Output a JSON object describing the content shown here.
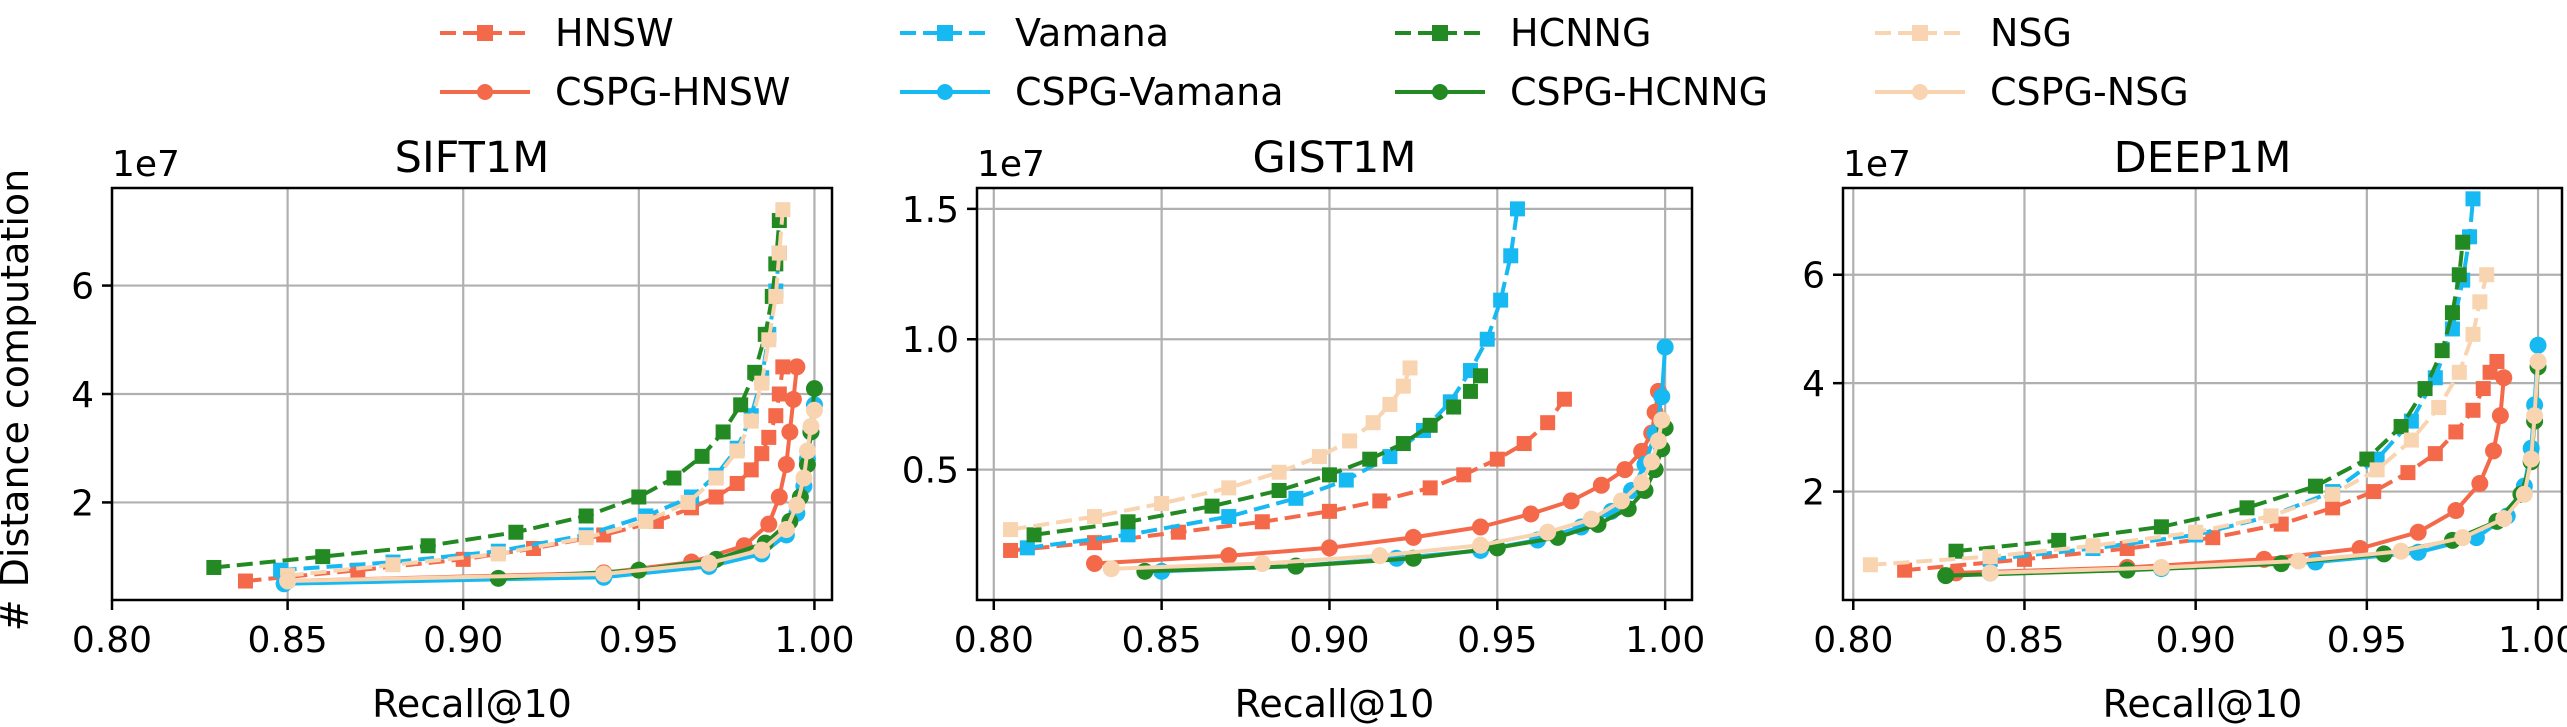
{
  "colors": {
    "HNSW": "#f4694a",
    "Vamana": "#17b9f2",
    "HCNNG": "#238a23",
    "NSG": "#f8d4b0"
  },
  "legend": {
    "position": "top-center",
    "entries": [
      {
        "label": "HNSW",
        "series": "HNSW",
        "style": "dashed",
        "marker": "square"
      },
      {
        "label": "Vamana",
        "series": "Vamana",
        "style": "dashed",
        "marker": "square"
      },
      {
        "label": "HCNNG",
        "series": "HCNNG",
        "style": "dashed",
        "marker": "square"
      },
      {
        "label": "NSG",
        "series": "NSG",
        "style": "dashed",
        "marker": "square"
      },
      {
        "label": "CSPG-HNSW",
        "series": "HNSW",
        "style": "solid",
        "marker": "circle"
      },
      {
        "label": "CSPG-Vamana",
        "series": "Vamana",
        "style": "solid",
        "marker": "circle"
      },
      {
        "label": "CSPG-HCNNG",
        "series": "HCNNG",
        "style": "solid",
        "marker": "circle"
      },
      {
        "label": "CSPG-NSG",
        "series": "NSG",
        "style": "solid",
        "marker": "circle"
      }
    ]
  },
  "ylabel_shared": "# Distance computation",
  "chart_data": [
    {
      "type": "line",
      "title": "SIFT1M",
      "xlabel": "Recall@10",
      "ylabel": "# Distance computation",
      "offset_label": "1e7",
      "xlim": [
        0.8,
        1.005
      ],
      "ylim": [
        0.2,
        7.8
      ],
      "xticks": [
        0.8,
        0.85,
        0.9,
        0.95,
        1.0
      ],
      "xtick_labels": [
        "0.80",
        "0.85",
        "0.90",
        "0.95",
        "1.00"
      ],
      "yticks": [
        2,
        4,
        6
      ],
      "ytick_labels": [
        "2",
        "4",
        "6"
      ],
      "grid": true,
      "series": [
        {
          "name": "HNSW",
          "x": [
            0.838,
            0.87,
            0.9,
            0.92,
            0.94,
            0.955,
            0.965,
            0.972,
            0.978,
            0.982,
            0.985,
            0.987,
            0.989,
            0.99,
            0.991
          ],
          "y": [
            0.55,
            0.75,
            0.95,
            1.15,
            1.4,
            1.65,
            1.9,
            2.1,
            2.35,
            2.6,
            2.9,
            3.2,
            3.6,
            4.0,
            4.5
          ]
        },
        {
          "name": "Vamana",
          "x": [
            0.848,
            0.88,
            0.91,
            0.935,
            0.952,
            0.965,
            0.972,
            0.978,
            0.982,
            0.985,
            0.987,
            0.989,
            0.99
          ],
          "y": [
            0.75,
            0.9,
            1.1,
            1.4,
            1.75,
            2.1,
            2.5,
            3.0,
            3.6,
            4.3,
            5.1,
            5.9,
            6.6
          ]
        },
        {
          "name": "HCNNG",
          "x": [
            0.829,
            0.86,
            0.89,
            0.915,
            0.935,
            0.95,
            0.96,
            0.968,
            0.974,
            0.979,
            0.983,
            0.986,
            0.988,
            0.989,
            0.99
          ],
          "y": [
            0.8,
            1.0,
            1.2,
            1.45,
            1.75,
            2.1,
            2.45,
            2.85,
            3.3,
            3.8,
            4.4,
            5.1,
            5.8,
            6.4,
            7.2
          ]
        },
        {
          "name": "NSG",
          "x": [
            0.85,
            0.88,
            0.91,
            0.935,
            0.952,
            0.964,
            0.972,
            0.978,
            0.982,
            0.985,
            0.987,
            0.989,
            0.99,
            0.991
          ],
          "y": [
            0.65,
            0.85,
            1.05,
            1.35,
            1.65,
            2.0,
            2.45,
            2.95,
            3.5,
            4.2,
            5.0,
            5.8,
            6.6,
            7.4
          ]
        },
        {
          "name": "CSPG-HNSW",
          "x": [
            0.85,
            0.94,
            0.965,
            0.98,
            0.987,
            0.99,
            0.992,
            0.993,
            0.994,
            0.995
          ],
          "y": [
            0.55,
            0.7,
            0.9,
            1.2,
            1.6,
            2.1,
            2.7,
            3.3,
            3.9,
            4.5
          ]
        },
        {
          "name": "CSPG-Vamana",
          "x": [
            0.849,
            0.94,
            0.97,
            0.985,
            0.992,
            0.995,
            0.997,
            0.998,
            0.999,
            1.0
          ],
          "y": [
            0.5,
            0.62,
            0.82,
            1.05,
            1.4,
            1.8,
            2.3,
            2.8,
            3.3,
            3.8
          ]
        },
        {
          "name": "CSPG-HCNNG",
          "x": [
            0.91,
            0.95,
            0.972,
            0.986,
            0.993,
            0.996,
            0.998,
            0.999,
            1.0
          ],
          "y": [
            0.6,
            0.75,
            0.95,
            1.25,
            1.65,
            2.1,
            2.7,
            3.3,
            4.1
          ]
        },
        {
          "name": "CSPG-NSG",
          "x": [
            0.85,
            0.94,
            0.97,
            0.985,
            0.992,
            0.995,
            0.997,
            0.998,
            0.999,
            1.0
          ],
          "y": [
            0.55,
            0.68,
            0.88,
            1.12,
            1.5,
            1.95,
            2.45,
            2.95,
            3.4,
            3.7
          ]
        }
      ]
    },
    {
      "type": "line",
      "title": "GIST1M",
      "xlabel": "Recall@10",
      "ylabel": "",
      "offset_label": "1e7",
      "xlim": [
        0.795,
        1.008
      ],
      "ylim": [
        0.0,
        1.58
      ],
      "xticks": [
        0.8,
        0.85,
        0.9,
        0.95,
        1.0
      ],
      "xtick_labels": [
        "0.80",
        "0.85",
        "0.90",
        "0.95",
        "1.00"
      ],
      "yticks": [
        0.5,
        1.0,
        1.5
      ],
      "ytick_labels": [
        "0.5",
        "1.0",
        "1.5"
      ],
      "grid": true,
      "series": [
        {
          "name": "HNSW",
          "x": [
            0.805,
            0.83,
            0.855,
            0.88,
            0.9,
            0.915,
            0.93,
            0.94,
            0.95,
            0.958,
            0.965,
            0.97
          ],
          "y": [
            0.19,
            0.22,
            0.26,
            0.3,
            0.34,
            0.38,
            0.43,
            0.48,
            0.54,
            0.6,
            0.68,
            0.77
          ]
        },
        {
          "name": "Vamana",
          "x": [
            0.81,
            0.84,
            0.87,
            0.89,
            0.905,
            0.918,
            0.928,
            0.936,
            0.942,
            0.947,
            0.951,
            0.954,
            0.956
          ],
          "y": [
            0.2,
            0.25,
            0.32,
            0.39,
            0.46,
            0.55,
            0.65,
            0.76,
            0.88,
            1.0,
            1.15,
            1.32,
            1.5
          ]
        },
        {
          "name": "HCNNG",
          "x": [
            0.812,
            0.84,
            0.865,
            0.885,
            0.9,
            0.912,
            0.922,
            0.93,
            0.937,
            0.942,
            0.945
          ],
          "y": [
            0.25,
            0.3,
            0.36,
            0.42,
            0.48,
            0.54,
            0.6,
            0.67,
            0.74,
            0.8,
            0.86
          ]
        },
        {
          "name": "NSG",
          "x": [
            0.805,
            0.83,
            0.85,
            0.87,
            0.885,
            0.897,
            0.906,
            0.913,
            0.918,
            0.922,
            0.924
          ],
          "y": [
            0.27,
            0.32,
            0.37,
            0.43,
            0.49,
            0.55,
            0.61,
            0.68,
            0.75,
            0.82,
            0.89
          ]
        },
        {
          "name": "CSPG-HNSW",
          "x": [
            0.83,
            0.87,
            0.9,
            0.925,
            0.945,
            0.96,
            0.972,
            0.981,
            0.988,
            0.993,
            0.996,
            0.997,
            0.998
          ],
          "y": [
            0.14,
            0.17,
            0.2,
            0.24,
            0.28,
            0.33,
            0.38,
            0.44,
            0.5,
            0.57,
            0.64,
            0.72,
            0.8
          ]
        },
        {
          "name": "CSPG-Vamana",
          "x": [
            0.85,
            0.89,
            0.92,
            0.945,
            0.962,
            0.975,
            0.984,
            0.99,
            0.994,
            0.997,
            0.999,
            1.0
          ],
          "y": [
            0.11,
            0.13,
            0.16,
            0.19,
            0.23,
            0.28,
            0.34,
            0.42,
            0.52,
            0.64,
            0.78,
            0.97
          ]
        },
        {
          "name": "CSPG-HCNNG",
          "x": [
            0.845,
            0.89,
            0.925,
            0.95,
            0.968,
            0.98,
            0.989,
            0.994,
            0.997,
            0.999,
            1.0
          ],
          "y": [
            0.11,
            0.13,
            0.16,
            0.2,
            0.24,
            0.29,
            0.35,
            0.42,
            0.5,
            0.58,
            0.66
          ]
        },
        {
          "name": "CSPG-NSG",
          "x": [
            0.835,
            0.88,
            0.915,
            0.945,
            0.965,
            0.978,
            0.987,
            0.993,
            0.996,
            0.998,
            0.999
          ],
          "y": [
            0.12,
            0.14,
            0.17,
            0.21,
            0.26,
            0.31,
            0.38,
            0.45,
            0.53,
            0.61,
            0.69
          ]
        }
      ]
    },
    {
      "type": "line",
      "title": "DEEP1M",
      "xlabel": "Recall@10",
      "ylabel": "",
      "offset_label": "1e7",
      "xlim": [
        0.797,
        1.007
      ],
      "ylim": [
        0.0,
        7.6
      ],
      "xticks": [
        0.8,
        0.85,
        0.9,
        0.95,
        1.0
      ],
      "xtick_labels": [
        "0.80",
        "0.85",
        "0.90",
        "0.95",
        "1.00"
      ],
      "yticks": [
        2,
        4,
        6
      ],
      "ytick_labels": [
        "2",
        "4",
        "6"
      ],
      "grid": true,
      "series": [
        {
          "name": "HNSW",
          "x": [
            0.815,
            0.85,
            0.88,
            0.905,
            0.925,
            0.94,
            0.952,
            0.962,
            0.97,
            0.976,
            0.981,
            0.984,
            0.986,
            0.988
          ],
          "y": [
            0.55,
            0.75,
            0.95,
            1.15,
            1.4,
            1.7,
            2.0,
            2.35,
            2.7,
            3.1,
            3.5,
            3.9,
            4.2,
            4.4
          ]
        },
        {
          "name": "Vamana",
          "x": [
            0.84,
            0.87,
            0.9,
            0.922,
            0.94,
            0.953,
            0.963,
            0.97,
            0.975,
            0.978,
            0.98,
            0.981
          ],
          "y": [
            0.75,
            0.95,
            1.2,
            1.55,
            2.0,
            2.6,
            3.3,
            4.1,
            5.0,
            5.9,
            6.7,
            7.4
          ]
        },
        {
          "name": "HCNNG",
          "x": [
            0.83,
            0.86,
            0.89,
            0.915,
            0.935,
            0.95,
            0.96,
            0.967,
            0.972,
            0.975,
            0.977,
            0.978
          ],
          "y": [
            0.9,
            1.1,
            1.35,
            1.7,
            2.1,
            2.6,
            3.2,
            3.9,
            4.6,
            5.3,
            6.0,
            6.6
          ]
        },
        {
          "name": "NSG",
          "x": [
            0.805,
            0.84,
            0.87,
            0.9,
            0.922,
            0.94,
            0.953,
            0.963,
            0.971,
            0.977,
            0.981,
            0.983,
            0.985
          ],
          "y": [
            0.65,
            0.8,
            1.0,
            1.25,
            1.55,
            1.95,
            2.4,
            2.95,
            3.55,
            4.2,
            4.9,
            5.5,
            6.0
          ]
        },
        {
          "name": "CSPG-HNSW",
          "x": [
            0.83,
            0.88,
            0.92,
            0.948,
            0.965,
            0.976,
            0.983,
            0.987,
            0.989,
            0.99
          ],
          "y": [
            0.5,
            0.6,
            0.75,
            0.95,
            1.25,
            1.65,
            2.15,
            2.75,
            3.4,
            4.1
          ]
        },
        {
          "name": "CSPG-Vamana",
          "x": [
            0.84,
            0.89,
            0.935,
            0.965,
            0.982,
            0.991,
            0.996,
            0.998,
            0.999,
            1.0
          ],
          "y": [
            0.5,
            0.58,
            0.7,
            0.88,
            1.15,
            1.55,
            2.1,
            2.8,
            3.6,
            4.7
          ]
        },
        {
          "name": "CSPG-HCNNG",
          "x": [
            0.827,
            0.88,
            0.925,
            0.955,
            0.975,
            0.988,
            0.995,
            0.998,
            0.999,
            1.0
          ],
          "y": [
            0.45,
            0.55,
            0.67,
            0.85,
            1.1,
            1.45,
            1.95,
            2.55,
            3.3,
            4.3
          ]
        },
        {
          "name": "CSPG-NSG",
          "x": [
            0.84,
            0.89,
            0.93,
            0.96,
            0.978,
            0.99,
            0.996,
            0.998,
            0.999,
            1.0
          ],
          "y": [
            0.5,
            0.6,
            0.72,
            0.9,
            1.15,
            1.5,
            1.95,
            2.6,
            3.4,
            4.4
          ]
        }
      ]
    }
  ]
}
